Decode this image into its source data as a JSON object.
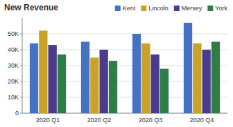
{
  "chart_data": {
    "type": "bar",
    "title": "New Revenue",
    "categories": [
      "2020 Q1",
      "2020 Q2",
      "2020 Q3",
      "2020 Q4"
    ],
    "series": [
      {
        "name": "Kent",
        "color": "#4472c4",
        "values": [
          44000,
          45000,
          50000,
          57000
        ]
      },
      {
        "name": "Lincoln",
        "color": "#c9a227",
        "values": [
          52000,
          35000,
          44000,
          44000
        ]
      },
      {
        "name": "Mersey",
        "color": "#4b3b8c",
        "values": [
          43000,
          40000,
          37000,
          40000
        ]
      },
      {
        "name": "York",
        "color": "#2d7d46",
        "values": [
          37000,
          33000,
          28000,
          45000
        ]
      }
    ],
    "ylim": [
      0,
      60000
    ],
    "yticks": [
      0,
      {
        "value": 10000,
        "label": "10K"
      },
      {
        "value": 20000,
        "label": "20K"
      },
      {
        "value": 30000,
        "label": "30K"
      },
      {
        "value": 40000,
        "label": "40K"
      },
      {
        "value": 50000,
        "label": "50K"
      }
    ],
    "grid": true,
    "legend": "upper right"
  }
}
